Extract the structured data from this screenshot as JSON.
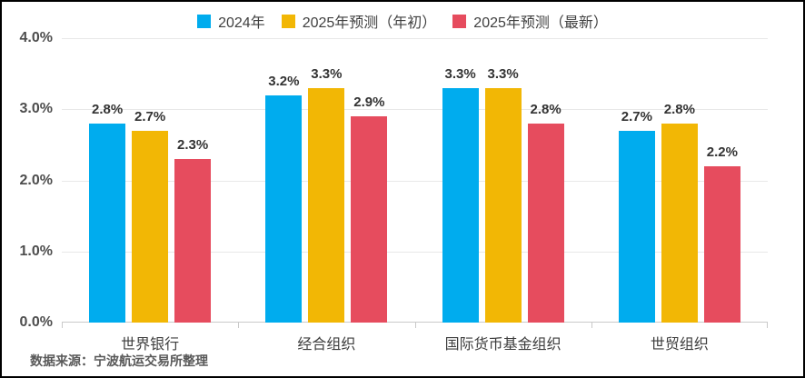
{
  "chart_data": {
    "type": "bar",
    "title": "",
    "categories": [
      "世界银行",
      "经合组织",
      "国际货币基金组织",
      "世贸组织"
    ],
    "series": [
      {
        "name": "2024年",
        "color": "#00ACEE",
        "values": [
          2.8,
          3.2,
          3.3,
          2.7
        ]
      },
      {
        "name": "2025年预测（年初）",
        "color": "#F2B705",
        "values": [
          2.7,
          3.3,
          3.3,
          2.8
        ]
      },
      {
        "name": "2025年预测（最新）",
        "color": "#E64C5E",
        "values": [
          2.3,
          2.9,
          2.8,
          2.2
        ]
      }
    ],
    "xlabel": "",
    "ylabel": "",
    "ylim": [
      0,
      4
    ],
    "yticks": [
      "0.0%",
      "1.0%",
      "2.0%",
      "3.0%",
      "4.0%"
    ],
    "value_suffix": "%",
    "value_decimals": 1,
    "grid": true,
    "legend_position": "top",
    "colors": {
      "grid": "#e8e8e8",
      "axis": "#c9c9c9",
      "label_text": "#333333"
    }
  },
  "footer": {
    "source": "数据来源：宁波航运交易所整理"
  }
}
